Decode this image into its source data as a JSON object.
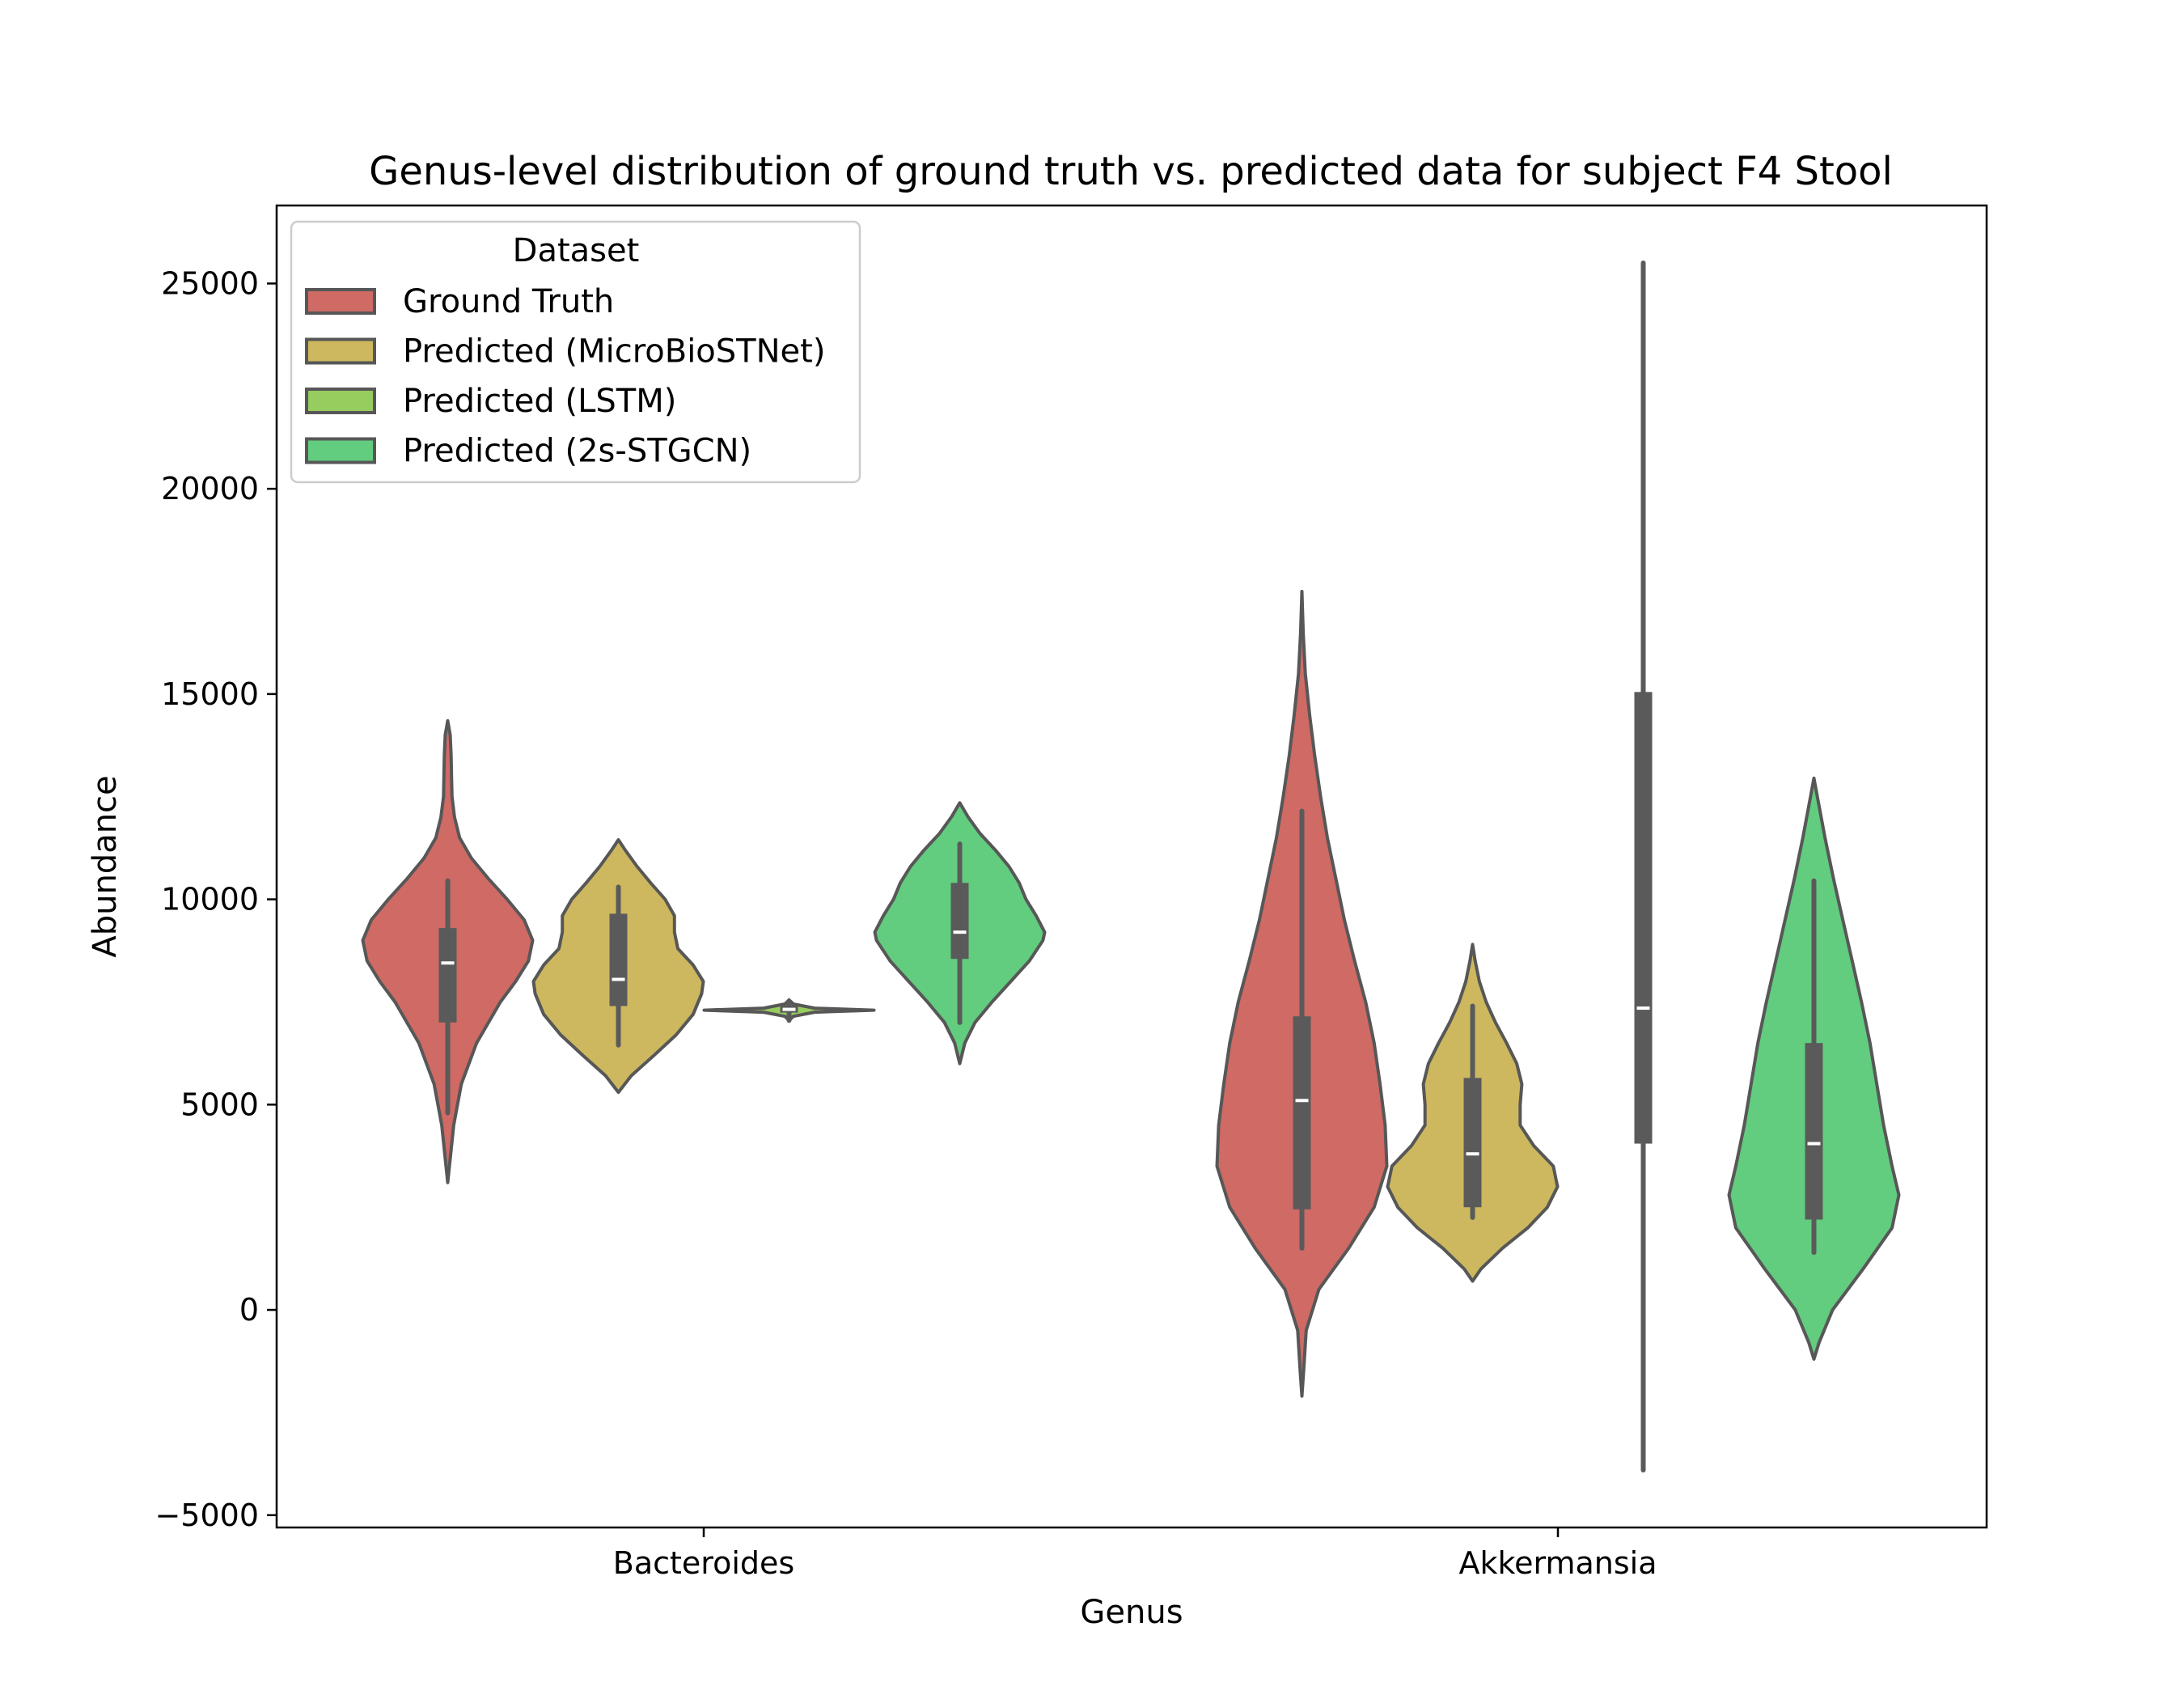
{
  "chart_data": {
    "type": "violin",
    "title": "Genus-level distribution of ground truth vs. predicted data for subject F4 Stool",
    "xlabel": "Genus",
    "ylabel": "Abundance",
    "ylim": [
      -5300,
      26900
    ],
    "yticks": [
      -5000,
      0,
      5000,
      10000,
      15000,
      20000,
      25000
    ],
    "ytick_labels": [
      "−5000",
      "0",
      "5000",
      "10000",
      "15000",
      "20000",
      "25000"
    ],
    "categories": [
      "Bacteroides",
      "Akkermansia"
    ],
    "legend": {
      "title": "Dataset",
      "position": "upper-left",
      "entries": [
        "Ground Truth",
        "Predicted (MicroBioSTNet)",
        "Predicted (LSTM)",
        "Predicted (2s-STGCN)"
      ]
    },
    "colors": {
      "Ground Truth": "#cf6a65",
      "Predicted (MicroBioSTNet)": "#cdb85f",
      "Predicted (LSTM)": "#97cc5f",
      "Predicted (2s-STGCN)": "#62cc7f",
      "box": "#5a5a5a",
      "edge": "#575757"
    },
    "series": [
      {
        "name": "Ground Truth",
        "groups": [
          {
            "category": "Bacteroides",
            "median": 8450,
            "q1": 7000,
            "q3": 9300,
            "whisker_low": 4800,
            "whisker_high": 10450,
            "density": [
              [
                3100,
                0.0
              ],
              [
                3500,
                0.02
              ],
              [
                4500,
                0.07
              ],
              [
                5500,
                0.16
              ],
              [
                6500,
                0.34
              ],
              [
                7500,
                0.62
              ],
              [
                8000,
                0.8
              ],
              [
                8500,
                0.95
              ],
              [
                9000,
                1.0
              ],
              [
                9500,
                0.9
              ],
              [
                10000,
                0.7
              ],
              [
                10500,
                0.48
              ],
              [
                11000,
                0.28
              ],
              [
                11500,
                0.14
              ],
              [
                12000,
                0.08
              ],
              [
                12500,
                0.05
              ],
              [
                13000,
                0.045
              ],
              [
                13500,
                0.04
              ],
              [
                14000,
                0.03
              ],
              [
                14350,
                0.0
              ]
            ]
          },
          {
            "category": "Akkermansia",
            "median": 5100,
            "q1": 2450,
            "q3": 7150,
            "whisker_low": 1500,
            "whisker_high": 12150,
            "density": [
              [
                -2100,
                0.0
              ],
              [
                -1500,
                0.02
              ],
              [
                -500,
                0.05
              ],
              [
                500,
                0.2
              ],
              [
                1500,
                0.55
              ],
              [
                2500,
                0.85
              ],
              [
                3500,
                1.0
              ],
              [
                4500,
                0.98
              ],
              [
                5500,
                0.92
              ],
              [
                6500,
                0.85
              ],
              [
                7500,
                0.75
              ],
              [
                8500,
                0.62
              ],
              [
                9500,
                0.5
              ],
              [
                10500,
                0.4
              ],
              [
                11500,
                0.3
              ],
              [
                12500,
                0.22
              ],
              [
                13500,
                0.15
              ],
              [
                14500,
                0.09
              ],
              [
                15500,
                0.04
              ],
              [
                16500,
                0.015
              ],
              [
                17500,
                0.0
              ]
            ]
          }
        ]
      },
      {
        "name": "Predicted (MicroBioSTNet)",
        "groups": [
          {
            "category": "Bacteroides",
            "median": 8050,
            "q1": 7400,
            "q3": 9650,
            "whisker_low": 6450,
            "whisker_high": 10300,
            "density": [
              [
                5300,
                0.0
              ],
              [
                5700,
                0.15
              ],
              [
                6200,
                0.42
              ],
              [
                6700,
                0.68
              ],
              [
                7200,
                0.88
              ],
              [
                7700,
                0.98
              ],
              [
                8000,
                1.0
              ],
              [
                8400,
                0.88
              ],
              [
                8800,
                0.7
              ],
              [
                9200,
                0.66
              ],
              [
                9600,
                0.66
              ],
              [
                10000,
                0.55
              ],
              [
                10400,
                0.38
              ],
              [
                10800,
                0.22
              ],
              [
                11200,
                0.08
              ],
              [
                11450,
                0.0
              ]
            ]
          },
          {
            "category": "Akkermansia",
            "median": 3800,
            "q1": 2500,
            "q3": 5650,
            "whisker_low": 2250,
            "whisker_high": 7400,
            "density": [
              [
                700,
                0.0
              ],
              [
                1000,
                0.1
              ],
              [
                1500,
                0.35
              ],
              [
                2000,
                0.65
              ],
              [
                2500,
                0.88
              ],
              [
                3000,
                1.0
              ],
              [
                3500,
                0.95
              ],
              [
                4000,
                0.72
              ],
              [
                4500,
                0.56
              ],
              [
                5000,
                0.56
              ],
              [
                5500,
                0.58
              ],
              [
                6000,
                0.52
              ],
              [
                6500,
                0.4
              ],
              [
                7000,
                0.27
              ],
              [
                7500,
                0.16
              ],
              [
                8000,
                0.08
              ],
              [
                8500,
                0.03
              ],
              [
                8900,
                0.0
              ]
            ]
          }
        ]
      },
      {
        "name": "Predicted (LSTM)",
        "groups": [
          {
            "category": "Bacteroides",
            "median": 7320,
            "q1": 7240,
            "q3": 7420,
            "whisker_low": 7050,
            "whisker_high": 7500,
            "density": [
              [
                7050,
                0.0
              ],
              [
                7150,
                0.05
              ],
              [
                7250,
                0.3
              ],
              [
                7300,
                1.0
              ],
              [
                7350,
                0.3
              ],
              [
                7450,
                0.05
              ],
              [
                7550,
                0.0
              ]
            ]
          },
          {
            "category": "Akkermansia",
            "median": 7350,
            "q1": 4050,
            "q3": 15050,
            "whisker_low": -3900,
            "whisker_high": 25500,
            "density": [
              [
                -3900,
                0.0
              ],
              [
                25500,
                0.0
              ]
            ]
          }
        ]
      },
      {
        "name": "Predicted (2s-STGCN)",
        "groups": [
          {
            "category": "Bacteroides",
            "median": 9200,
            "q1": 8550,
            "q3": 10400,
            "whisker_low": 7000,
            "whisker_high": 11350,
            "density": [
              [
                6000,
                0.0
              ],
              [
                6500,
                0.06
              ],
              [
                7000,
                0.18
              ],
              [
                7500,
                0.38
              ],
              [
                8000,
                0.6
              ],
              [
                8500,
                0.82
              ],
              [
                9000,
                0.98
              ],
              [
                9200,
                1.0
              ],
              [
                9600,
                0.9
              ],
              [
                10000,
                0.78
              ],
              [
                10400,
                0.7
              ],
              [
                10800,
                0.58
              ],
              [
                11200,
                0.42
              ],
              [
                11600,
                0.24
              ],
              [
                12000,
                0.1
              ],
              [
                12350,
                0.0
              ]
            ]
          },
          {
            "category": "Akkermansia",
            "median": 4050,
            "q1": 2200,
            "q3": 6500,
            "whisker_low": 1400,
            "whisker_high": 10450,
            "density": [
              [
                -1200,
                0.0
              ],
              [
                -800,
                0.06
              ],
              [
                0,
                0.22
              ],
              [
                1000,
                0.58
              ],
              [
                2000,
                0.92
              ],
              [
                2800,
                1.0
              ],
              [
                3500,
                0.92
              ],
              [
                4500,
                0.82
              ],
              [
                5500,
                0.74
              ],
              [
                6500,
                0.66
              ],
              [
                7500,
                0.56
              ],
              [
                8500,
                0.45
              ],
              [
                9500,
                0.34
              ],
              [
                10500,
                0.23
              ],
              [
                11500,
                0.13
              ],
              [
                12500,
                0.04
              ],
              [
                12950,
                0.0
              ]
            ]
          }
        ]
      }
    ]
  }
}
